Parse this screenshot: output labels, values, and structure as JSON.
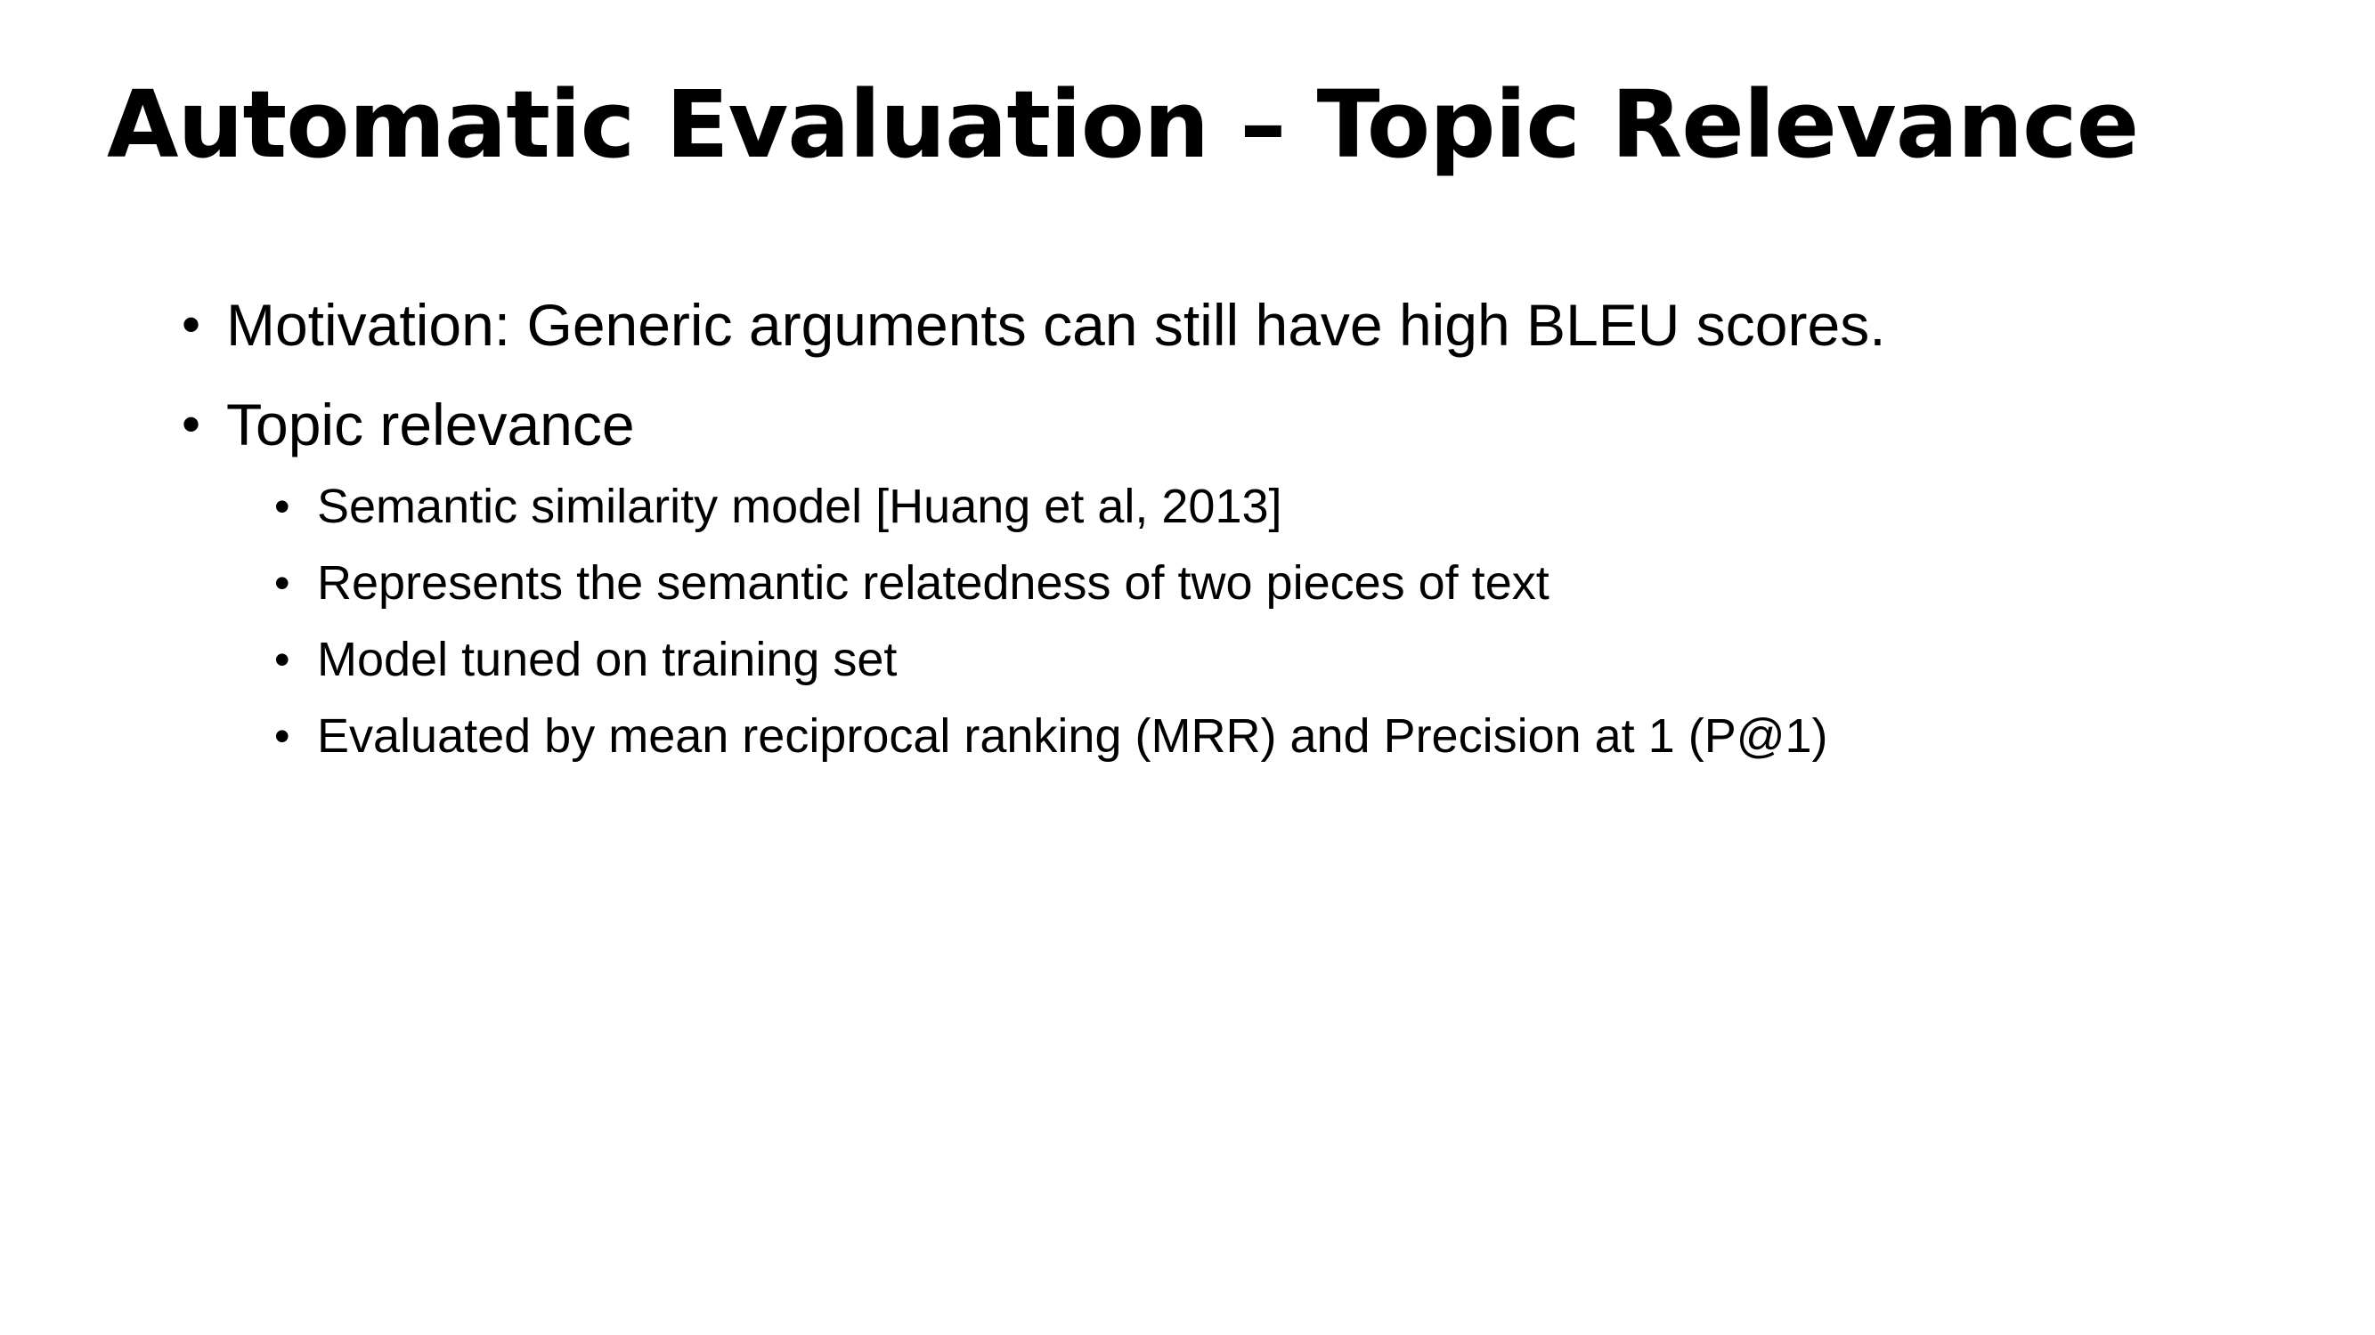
{
  "slide": {
    "title": "Automatic Evaluation – Topic Relevance",
    "bullets": [
      {
        "text": "Motivation: Generic arguments can still have high BLEU scores.",
        "marker": "•"
      },
      {
        "text": "Topic relevance",
        "marker": "•",
        "children": [
          {
            "text": "Semantic similarity model [Huang et al, 2013]",
            "marker": "•"
          },
          {
            "text": "Represents the semantic relatedness of two pieces of text",
            "marker": "•"
          },
          {
            "text": "Model tuned on training set",
            "marker": "•"
          },
          {
            "text": "Evaluated by mean reciprocal ranking (MRR) and Precision at 1 (P@1)",
            "marker": "•"
          }
        ]
      }
    ]
  }
}
